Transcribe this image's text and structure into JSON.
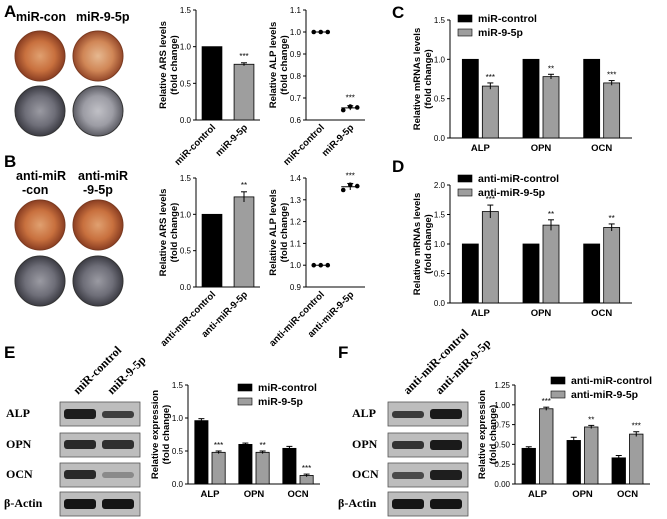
{
  "colors": {
    "control": "#000000",
    "treatment": "#9e9e9e",
    "dish_red": "#c0683a",
    "dish_gray": "#6a6a70"
  },
  "panel_A": {
    "label": "A",
    "dish_headers": [
      "miR-con",
      "miR-9-5p"
    ]
  },
  "panel_B": {
    "label": "B",
    "dish_headers_line1": [
      "anti-miR",
      "anti-miR"
    ],
    "dish_headers_line2": [
      "-con",
      "-9-5p"
    ]
  },
  "panel_E": {
    "label": "E",
    "lane_headers": [
      "miR-control",
      "miR-9-5p"
    ],
    "proteins": [
      "ALP",
      "OPN",
      "OCN",
      "β-Actin"
    ]
  },
  "panel_F": {
    "label": "F",
    "lane_headers": [
      "anti-miR-control",
      "anti-miR-9-5p"
    ],
    "proteins": [
      "ALP",
      "OPN",
      "OCN",
      "β-Actin"
    ]
  },
  "chart_data": [
    {
      "id": "A-ARS",
      "type": "bar",
      "categories": [
        "miR-control",
        "miR-9-5p"
      ],
      "values": [
        1.0,
        0.76
      ],
      "errors": [
        0,
        0.02
      ],
      "ylabel_line1": "Relative ARS levels",
      "ylabel_line2": "(fold change)",
      "ylim": [
        0,
        1.5
      ],
      "yticks": [
        "0.0",
        "0.5",
        "1.0",
        "1.5"
      ],
      "significance": [
        "",
        "***"
      ]
    },
    {
      "id": "A-ALP",
      "type": "scatter",
      "categories": [
        "miR-control",
        "miR-9-5p"
      ],
      "values": [
        1.0,
        0.655
      ],
      "errors": [
        0,
        0.01
      ],
      "ylabel_line1": "Relative ALP levels",
      "ylabel_line2": "(fold change)",
      "ylim": [
        0.6,
        1.1
      ],
      "yticks": [
        "0.6",
        "0.7",
        "0.8",
        "0.9",
        "1.0",
        "1.1"
      ],
      "significance": [
        "",
        "***"
      ]
    },
    {
      "id": "C",
      "label": "C",
      "type": "bar",
      "categories": [
        "ALP",
        "OPN",
        "OCN"
      ],
      "series": [
        {
          "name": "miR-control",
          "values": [
            1.0,
            1.0,
            1.0
          ],
          "errors": [
            0,
            0,
            0
          ]
        },
        {
          "name": "miR-9-5p",
          "values": [
            0.66,
            0.78,
            0.7
          ],
          "errors": [
            0.04,
            0.03,
            0.03
          ]
        }
      ],
      "ylabel_line1": "Relative mRNAs levels",
      "ylabel_line2": "(fold change)",
      "ylim": [
        0,
        1.5
      ],
      "yticks": [
        "0.0",
        "0.5",
        "1.0",
        "1.5"
      ],
      "significance": [
        "***",
        "**",
        "***"
      ]
    },
    {
      "id": "B-ARS",
      "type": "bar",
      "categories": [
        "anti-miR-control",
        "anti-miR-9-5p"
      ],
      "values": [
        1.0,
        1.24
      ],
      "errors": [
        0,
        0.07
      ],
      "ylabel_line1": "Relative ARS levels",
      "ylabel_line2": "(fold change)",
      "ylim": [
        0,
        1.5
      ],
      "yticks": [
        "0.0",
        "0.5",
        "1.0",
        "1.5"
      ],
      "significance": [
        "",
        "**"
      ]
    },
    {
      "id": "B-ALP",
      "type": "scatter",
      "categories": [
        "anti-miR-control",
        "anti-miR-9-5p"
      ],
      "values": [
        1.0,
        1.36
      ],
      "errors": [
        0,
        0.015
      ],
      "ylabel_line1": "Relative ALP levels",
      "ylabel_line2": "(fold change)",
      "ylim": [
        0.9,
        1.4
      ],
      "yticks": [
        "0.9",
        "1.0",
        "1.1",
        "1.2",
        "1.3",
        "1.4"
      ],
      "significance": [
        "",
        "***"
      ]
    },
    {
      "id": "D",
      "label": "D",
      "type": "bar",
      "categories": [
        "ALP",
        "OPN",
        "OCN"
      ],
      "series": [
        {
          "name": "anti-miR-control",
          "values": [
            1.0,
            1.0,
            1.0
          ],
          "errors": [
            0,
            0,
            0
          ]
        },
        {
          "name": "anti-miR-9-5p",
          "values": [
            1.55,
            1.32,
            1.28
          ],
          "errors": [
            0.11,
            0.09,
            0.06
          ]
        }
      ],
      "ylabel_line1": "Relative mRNAs levels",
      "ylabel_line2": "(fold change)",
      "ylim": [
        0,
        2.0
      ],
      "yticks": [
        "0.0",
        "0.5",
        "1.0",
        "1.5",
        "2.0"
      ],
      "significance": [
        "***",
        "**",
        "**"
      ]
    },
    {
      "id": "E-quant",
      "type": "bar",
      "categories": [
        "ALP",
        "OPN",
        "OCN"
      ],
      "series": [
        {
          "name": "miR-control",
          "values": [
            0.96,
            0.6,
            0.54
          ],
          "errors": [
            0.03,
            0.02,
            0.03
          ]
        },
        {
          "name": "miR-9-5p",
          "values": [
            0.48,
            0.48,
            0.13
          ],
          "errors": [
            0.02,
            0.02,
            0.02
          ]
        }
      ],
      "ylabel_line1": "Relative expression",
      "ylabel_line2": "(fold change)",
      "ylim": [
        0,
        1.5
      ],
      "yticks": [
        "0.0",
        "0.5",
        "1.0",
        "1.5"
      ],
      "significance": [
        "***",
        "**",
        "***"
      ]
    },
    {
      "id": "F-quant",
      "type": "bar",
      "categories": [
        "ALP",
        "OPN",
        "OCN"
      ],
      "series": [
        {
          "name": "anti-miR-control",
          "values": [
            0.45,
            0.55,
            0.33
          ],
          "errors": [
            0.02,
            0.04,
            0.03
          ]
        },
        {
          "name": "anti-miR-9-5p",
          "values": [
            0.95,
            0.72,
            0.63
          ],
          "errors": [
            0.02,
            0.02,
            0.03
          ]
        }
      ],
      "ylabel_line1": "Relative expression",
      "ylabel_line2": "(fold change)",
      "ylim": [
        0,
        1.25
      ],
      "yticks": [
        "0.00",
        "0.25",
        "0.50",
        "0.75",
        "1.00",
        "1.25"
      ],
      "significance": [
        "***",
        "**",
        "***"
      ]
    }
  ]
}
